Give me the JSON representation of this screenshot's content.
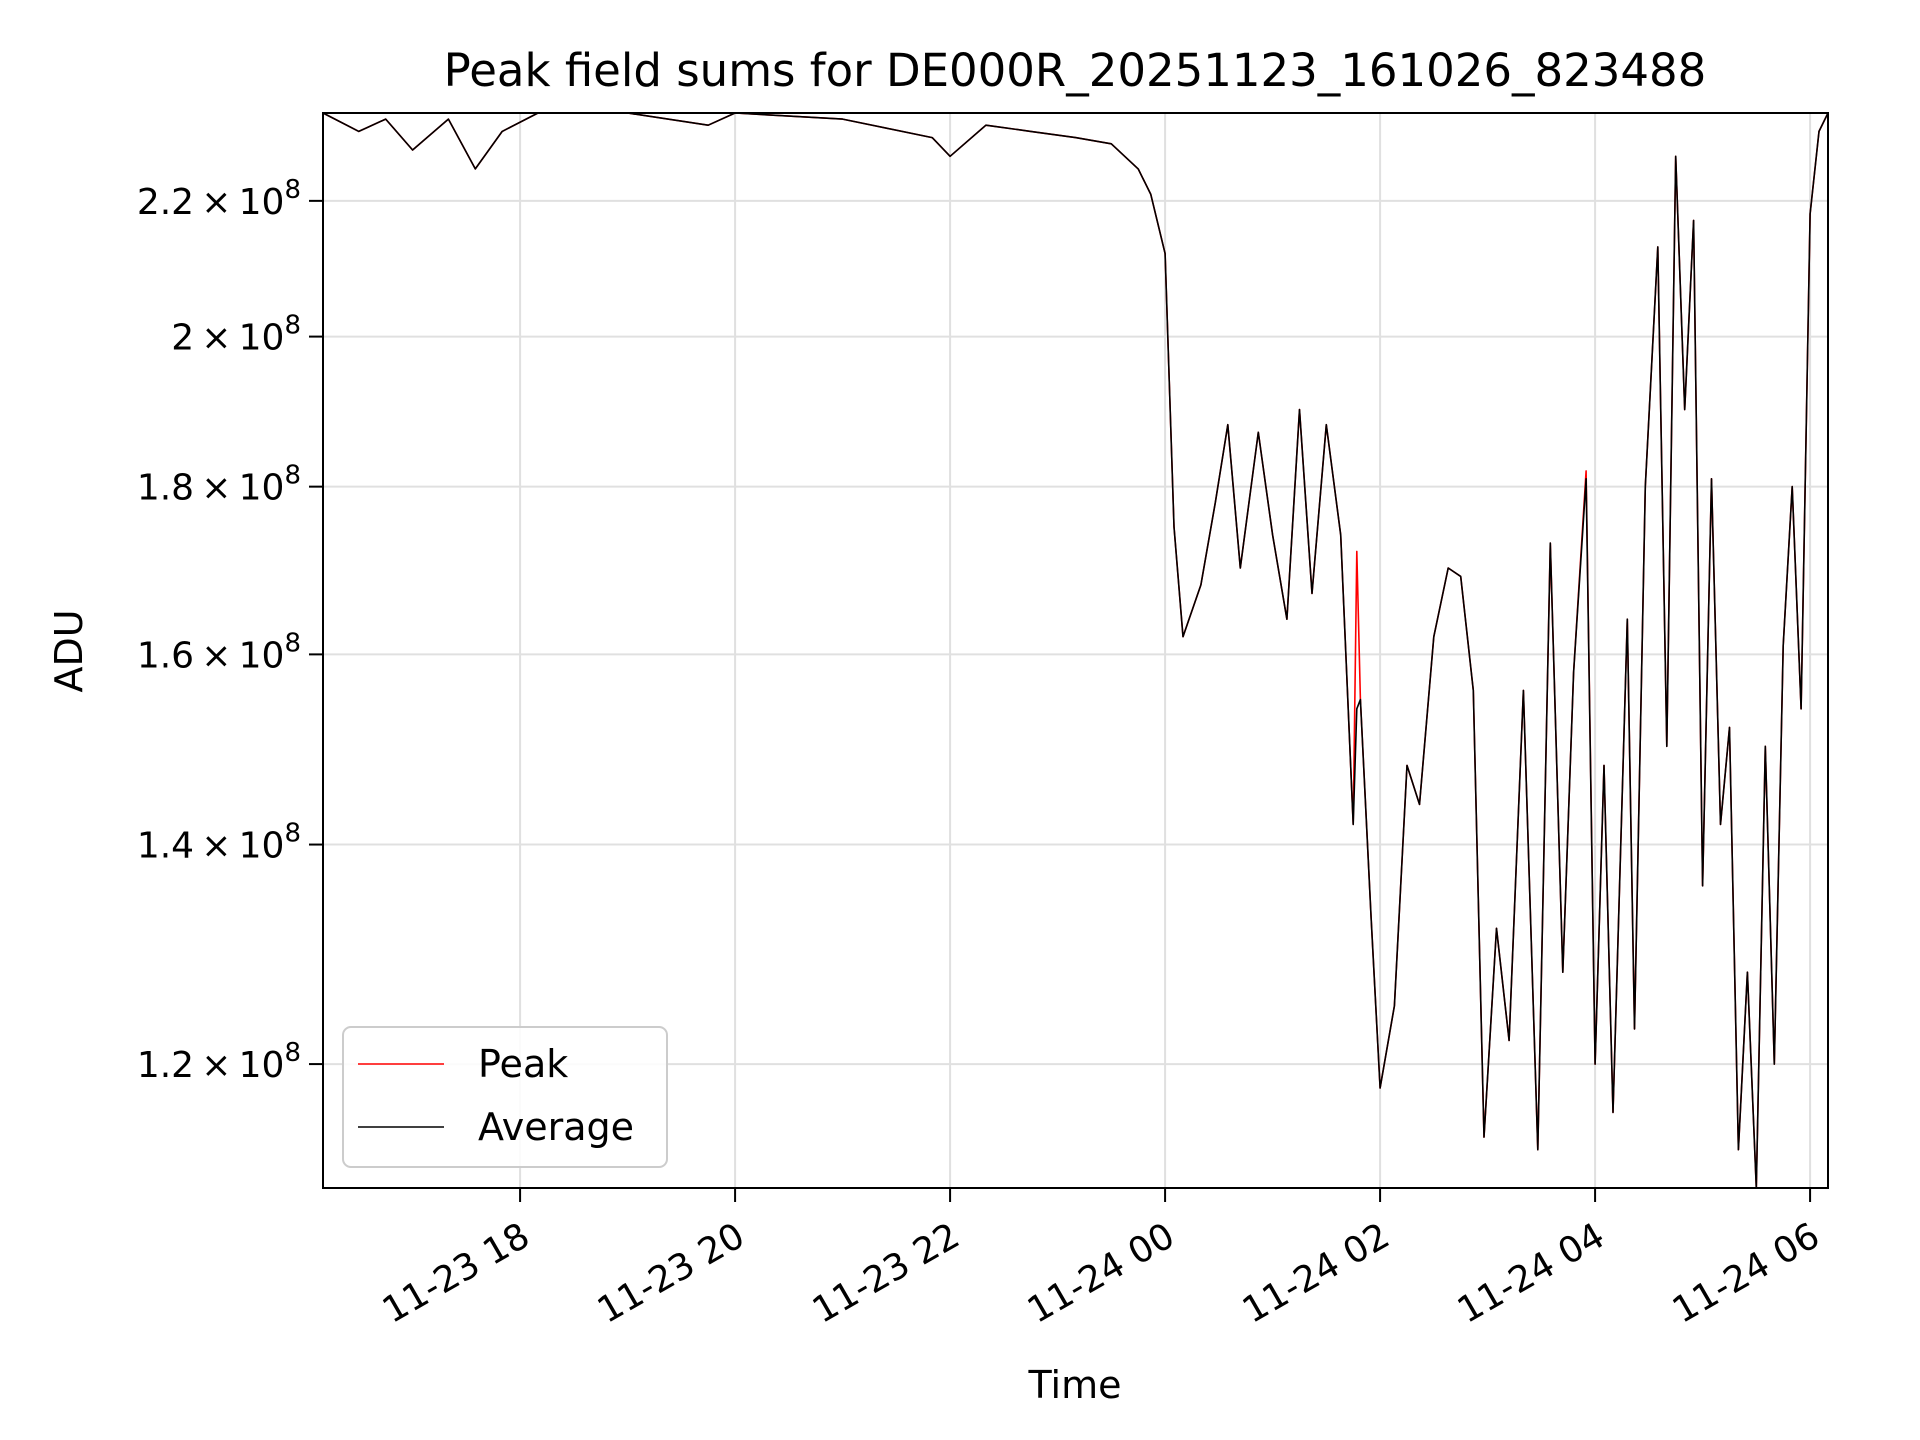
{
  "chart_data": {
    "type": "line",
    "title": "Peak field sums for DE000R_20251123_161026_823488",
    "xlabel": "Time",
    "ylabel": "ADU",
    "yscale": "log",
    "xlim": [
      "2025-11-23 16:10",
      "2025-11-24 06:10"
    ],
    "ylim": [
      110000000,
      234000000
    ],
    "x_ticks": [
      {
        "value": "2025-11-23 18:00",
        "label": "11-23 18"
      },
      {
        "value": "2025-11-23 20:00",
        "label": "11-23 20"
      },
      {
        "value": "2025-11-23 22:00",
        "label": "11-23 22"
      },
      {
        "value": "2025-11-24 00:00",
        "label": "11-24 00"
      },
      {
        "value": "2025-11-24 02:00",
        "label": "11-24 02"
      },
      {
        "value": "2025-11-24 04:00",
        "label": "11-24 04"
      },
      {
        "value": "2025-11-24 06:00",
        "label": "11-24 06"
      }
    ],
    "y_ticks": [
      {
        "value": 120000000,
        "mantissa": "1.2",
        "exp": "8"
      },
      {
        "value": 140000000,
        "mantissa": "1.4",
        "exp": "8"
      },
      {
        "value": 160000000,
        "mantissa": "1.6",
        "exp": "8"
      },
      {
        "value": 180000000,
        "mantissa": "1.8",
        "exp": "8"
      },
      {
        "value": 200000000,
        "mantissa": "2",
        "exp": "8"
      },
      {
        "value": 220000000,
        "mantissa": "2.2",
        "exp": "8"
      }
    ],
    "grid": true,
    "legend": {
      "position": "lower-left"
    },
    "series": [
      {
        "name": "Peak",
        "color": "#ff0000",
        "points": [
          [
            "2025-11-23 16:10",
            234000000.0
          ],
          [
            "2025-11-23 16:30",
            231000000.0
          ],
          [
            "2025-11-23 16:45",
            233000000.0
          ],
          [
            "2025-11-23 17:00",
            228000000.0
          ],
          [
            "2025-11-23 17:20",
            233000000.0
          ],
          [
            "2025-11-23 17:35",
            225000000.0
          ],
          [
            "2025-11-23 17:50",
            231000000.0
          ],
          [
            "2025-11-23 18:10",
            234000000.0
          ],
          [
            "2025-11-23 19:00",
            234000000.0
          ],
          [
            "2025-11-23 19:45",
            232000000.0
          ],
          [
            "2025-11-23 20:00",
            234000000.0
          ],
          [
            "2025-11-23 21:00",
            233000000.0
          ],
          [
            "2025-11-23 21:50",
            230000000.0
          ],
          [
            "2025-11-23 22:00",
            227000000.0
          ],
          [
            "2025-11-23 22:20",
            232000000.0
          ],
          [
            "2025-11-23 22:45",
            231000000.0
          ],
          [
            "2025-11-23 23:10",
            230000000.0
          ],
          [
            "2025-11-23 23:30",
            229000000.0
          ],
          [
            "2025-11-23 23:45",
            225000000.0
          ],
          [
            "2025-11-23 23:52",
            221000000.0
          ],
          [
            "2025-11-24 00:00",
            212000000.0
          ],
          [
            "2025-11-24 00:05",
            175000000.0
          ],
          [
            "2025-11-24 00:10",
            162000000.0
          ],
          [
            "2025-11-24 00:20",
            168000000.0
          ],
          [
            "2025-11-24 00:28",
            178000000.0
          ],
          [
            "2025-11-24 00:35",
            188000000.0
          ],
          [
            "2025-11-24 00:42",
            170000000.0
          ],
          [
            "2025-11-24 00:52",
            187000000.0
          ],
          [
            "2025-11-24 01:00",
            174000000.0
          ],
          [
            "2025-11-24 01:08",
            164000000.0
          ],
          [
            "2025-11-24 01:15",
            190000000.0
          ],
          [
            "2025-11-24 01:22",
            167000000.0
          ],
          [
            "2025-11-24 01:30",
            188000000.0
          ],
          [
            "2025-11-24 01:38",
            174000000.0
          ],
          [
            "2025-11-24 01:45",
            142000000.0
          ],
          [
            "2025-11-24 01:47",
            172000000.0
          ],
          [
            "2025-11-24 01:49",
            155000000.0
          ],
          [
            "2025-11-24 01:55",
            133000000.0
          ],
          [
            "2025-11-24 02:00",
            118000000.0
          ],
          [
            "2025-11-24 02:08",
            125000000.0
          ],
          [
            "2025-11-24 02:15",
            148000000.0
          ],
          [
            "2025-11-24 02:22",
            144000000.0
          ],
          [
            "2025-11-24 02:30",
            162000000.0
          ],
          [
            "2025-11-24 02:38",
            170000000.0
          ],
          [
            "2025-11-24 02:45",
            169000000.0
          ],
          [
            "2025-11-24 02:52",
            156000000.0
          ],
          [
            "2025-11-24 02:58",
            114000000.0
          ],
          [
            "2025-11-24 03:05",
            132000000.0
          ],
          [
            "2025-11-24 03:12",
            122000000.0
          ],
          [
            "2025-11-24 03:20",
            156000000.0
          ],
          [
            "2025-11-24 03:28",
            113000000.0
          ],
          [
            "2025-11-24 03:35",
            173000000.0
          ],
          [
            "2025-11-24 03:42",
            128000000.0
          ],
          [
            "2025-11-24 03:48",
            158000000.0
          ],
          [
            "2025-11-24 03:55",
            182000000.0
          ],
          [
            "2025-11-24 04:00",
            120000000.0
          ],
          [
            "2025-11-24 04:05",
            148000000.0
          ],
          [
            "2025-11-24 04:10",
            116000000.0
          ],
          [
            "2025-11-24 04:18",
            164000000.0
          ],
          [
            "2025-11-24 04:22",
            123000000.0
          ],
          [
            "2025-11-24 04:28",
            180000000.0
          ],
          [
            "2025-11-24 04:35",
            213000000.0
          ],
          [
            "2025-11-24 04:40",
            150000000.0
          ],
          [
            "2025-11-24 04:45",
            227000000.0
          ],
          [
            "2025-11-24 04:50",
            190000000.0
          ],
          [
            "2025-11-24 04:55",
            217000000.0
          ],
          [
            "2025-11-24 05:00",
            136000000.0
          ],
          [
            "2025-11-24 05:05",
            181000000.0
          ],
          [
            "2025-11-24 05:10",
            142000000.0
          ],
          [
            "2025-11-24 05:15",
            152000000.0
          ],
          [
            "2025-11-24 05:20",
            113000000.0
          ],
          [
            "2025-11-24 05:25",
            128000000.0
          ],
          [
            "2025-11-24 05:30",
            110000000.0
          ],
          [
            "2025-11-24 05:35",
            150000000.0
          ],
          [
            "2025-11-24 05:40",
            120000000.0
          ],
          [
            "2025-11-24 05:45",
            161000000.0
          ],
          [
            "2025-11-24 05:50",
            180000000.0
          ],
          [
            "2025-11-24 05:55",
            154000000.0
          ],
          [
            "2025-11-24 06:00",
            218000000.0
          ],
          [
            "2025-11-24 06:05",
            231000000.0
          ],
          [
            "2025-11-24 06:10",
            234000000.0
          ]
        ]
      },
      {
        "name": "Average",
        "color": "#000000",
        "points": [
          [
            "2025-11-23 16:10",
            234000000.0
          ],
          [
            "2025-11-23 16:30",
            231000000.0
          ],
          [
            "2025-11-23 16:45",
            233000000.0
          ],
          [
            "2025-11-23 17:00",
            228000000.0
          ],
          [
            "2025-11-23 17:20",
            233000000.0
          ],
          [
            "2025-11-23 17:35",
            225000000.0
          ],
          [
            "2025-11-23 17:50",
            231000000.0
          ],
          [
            "2025-11-23 18:10",
            234000000.0
          ],
          [
            "2025-11-23 19:00",
            234000000.0
          ],
          [
            "2025-11-23 19:45",
            232000000.0
          ],
          [
            "2025-11-23 20:00",
            234000000.0
          ],
          [
            "2025-11-23 21:00",
            233000000.0
          ],
          [
            "2025-11-23 21:50",
            230000000.0
          ],
          [
            "2025-11-23 22:00",
            227000000.0
          ],
          [
            "2025-11-23 22:20",
            232000000.0
          ],
          [
            "2025-11-23 22:45",
            231000000.0
          ],
          [
            "2025-11-23 23:10",
            230000000.0
          ],
          [
            "2025-11-23 23:30",
            229000000.0
          ],
          [
            "2025-11-23 23:45",
            225000000.0
          ],
          [
            "2025-11-23 23:52",
            221000000.0
          ],
          [
            "2025-11-24 00:00",
            212000000.0
          ],
          [
            "2025-11-24 00:05",
            175000000.0
          ],
          [
            "2025-11-24 00:10",
            162000000.0
          ],
          [
            "2025-11-24 00:20",
            168000000.0
          ],
          [
            "2025-11-24 00:28",
            178000000.0
          ],
          [
            "2025-11-24 00:35",
            188000000.0
          ],
          [
            "2025-11-24 00:42",
            170000000.0
          ],
          [
            "2025-11-24 00:52",
            187000000.0
          ],
          [
            "2025-11-24 01:00",
            174000000.0
          ],
          [
            "2025-11-24 01:08",
            164000000.0
          ],
          [
            "2025-11-24 01:15",
            190000000.0
          ],
          [
            "2025-11-24 01:22",
            167000000.0
          ],
          [
            "2025-11-24 01:30",
            188000000.0
          ],
          [
            "2025-11-24 01:38",
            174000000.0
          ],
          [
            "2025-11-24 01:45",
            142000000.0
          ],
          [
            "2025-11-24 01:47",
            154000000.0
          ],
          [
            "2025-11-24 01:49",
            155000000.0
          ],
          [
            "2025-11-24 01:55",
            133000000.0
          ],
          [
            "2025-11-24 02:00",
            118000000.0
          ],
          [
            "2025-11-24 02:08",
            125000000.0
          ],
          [
            "2025-11-24 02:15",
            148000000.0
          ],
          [
            "2025-11-24 02:22",
            144000000.0
          ],
          [
            "2025-11-24 02:30",
            162000000.0
          ],
          [
            "2025-11-24 02:38",
            170000000.0
          ],
          [
            "2025-11-24 02:45",
            169000000.0
          ],
          [
            "2025-11-24 02:52",
            156000000.0
          ],
          [
            "2025-11-24 02:58",
            114000000.0
          ],
          [
            "2025-11-24 03:05",
            132000000.0
          ],
          [
            "2025-11-24 03:12",
            122000000.0
          ],
          [
            "2025-11-24 03:20",
            156000000.0
          ],
          [
            "2025-11-24 03:28",
            113000000.0
          ],
          [
            "2025-11-24 03:35",
            173000000.0
          ],
          [
            "2025-11-24 03:42",
            128000000.0
          ],
          [
            "2025-11-24 03:48",
            158000000.0
          ],
          [
            "2025-11-24 03:55",
            181000000.0
          ],
          [
            "2025-11-24 04:00",
            120000000.0
          ],
          [
            "2025-11-24 04:05",
            148000000.0
          ],
          [
            "2025-11-24 04:10",
            116000000.0
          ],
          [
            "2025-11-24 04:18",
            164000000.0
          ],
          [
            "2025-11-24 04:22",
            123000000.0
          ],
          [
            "2025-11-24 04:28",
            180000000.0
          ],
          [
            "2025-11-24 04:35",
            213000000.0
          ],
          [
            "2025-11-24 04:40",
            150000000.0
          ],
          [
            "2025-11-24 04:45",
            227000000.0
          ],
          [
            "2025-11-24 04:50",
            190000000.0
          ],
          [
            "2025-11-24 04:55",
            217000000.0
          ],
          [
            "2025-11-24 05:00",
            136000000.0
          ],
          [
            "2025-11-24 05:05",
            181000000.0
          ],
          [
            "2025-11-24 05:10",
            142000000.0
          ],
          [
            "2025-11-24 05:15",
            152000000.0
          ],
          [
            "2025-11-24 05:20",
            113000000.0
          ],
          [
            "2025-11-24 05:25",
            128000000.0
          ],
          [
            "2025-11-24 05:30",
            110000000.0
          ],
          [
            "2025-11-24 05:35",
            150000000.0
          ],
          [
            "2025-11-24 05:40",
            120000000.0
          ],
          [
            "2025-11-24 05:45",
            161000000.0
          ],
          [
            "2025-11-24 05:50",
            180000000.0
          ],
          [
            "2025-11-24 05:55",
            154000000.0
          ],
          [
            "2025-11-24 06:00",
            218000000.0
          ],
          [
            "2025-11-24 06:05",
            231000000.0
          ],
          [
            "2025-11-24 06:10",
            234000000.0
          ]
        ]
      }
    ]
  }
}
